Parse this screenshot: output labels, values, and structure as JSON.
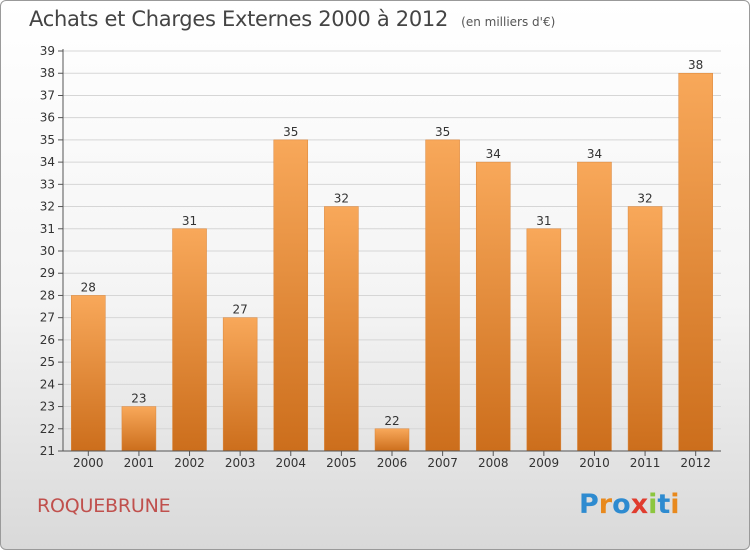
{
  "header": {
    "title": "Achats et Charges Externes 2000 à 2012",
    "unit": "(en milliers d'€)"
  },
  "footer": {
    "commune": "ROQUEBRUNE",
    "logo_text": "Proxiti",
    "logo_colors": [
      "#2e8bd0",
      "#e8891d",
      "#2e8bd0",
      "#e03c2e",
      "#8cc63f",
      "#2e8bd0",
      "#e8891d"
    ]
  },
  "colors": {
    "bar_top": "#f8a85a",
    "bar_bottom": "#cc6e1c",
    "grid": "#d6d6d6",
    "axis_text": "#333333"
  },
  "chart_data": {
    "type": "bar",
    "categories": [
      "2000",
      "2001",
      "2002",
      "2003",
      "2004",
      "2005",
      "2006",
      "2007",
      "2008",
      "2009",
      "2010",
      "2011",
      "2012"
    ],
    "values": [
      28,
      23,
      31,
      27,
      35,
      32,
      22,
      35,
      34,
      31,
      34,
      32,
      38
    ],
    "data_labels": [
      "28",
      "23",
      "31",
      "27",
      "35",
      "32",
      "22",
      "35",
      "34",
      "31",
      "34",
      "32",
      "38"
    ],
    "y_ticks": [
      "21",
      "22",
      "23",
      "24",
      "25",
      "26",
      "27",
      "28",
      "29",
      "30",
      "31",
      "32",
      "33",
      "34",
      "35",
      "36",
      "37",
      "38",
      "39"
    ],
    "ylim": [
      21,
      39
    ],
    "grid": true,
    "title": "Achats et Charges Externes 2000 à 2012",
    "xlabel": "",
    "ylabel": ""
  }
}
